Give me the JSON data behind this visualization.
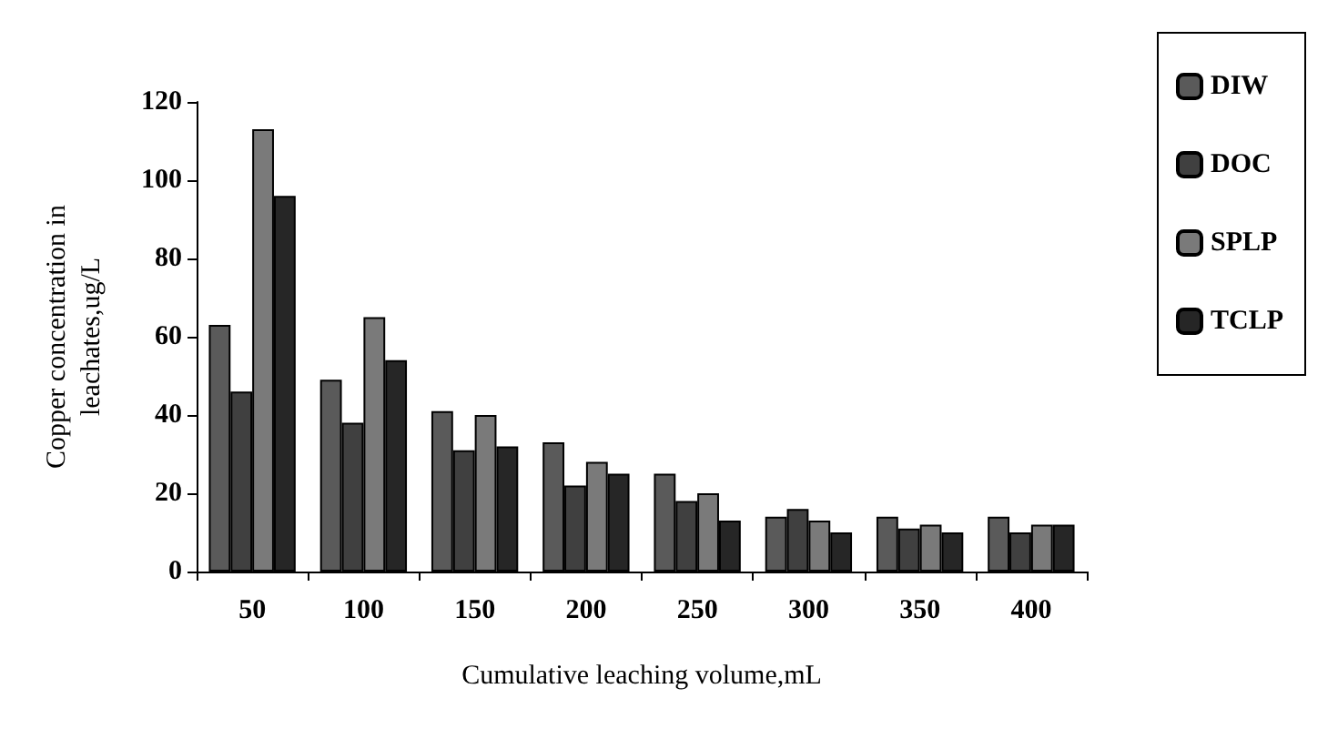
{
  "chart_data": {
    "type": "bar",
    "xlabel": "Cumulative leaching volume,mL",
    "ylabel": "Copper concentration in\nleachates,ug/L",
    "categories": [
      "50",
      "100",
      "150",
      "200",
      "250",
      "300",
      "350",
      "400"
    ],
    "series": [
      {
        "name": "DIW",
        "color": "#5a5a5a",
        "values": [
          63,
          49,
          41,
          33,
          25,
          14,
          14,
          14
        ]
      },
      {
        "name": "DOC",
        "color": "#404040",
        "values": [
          46,
          38,
          31,
          22,
          18,
          16,
          11,
          10
        ]
      },
      {
        "name": "SPLP",
        "color": "#7a7a7a",
        "values": [
          113,
          65,
          40,
          28,
          20,
          13,
          12,
          12
        ]
      },
      {
        "name": "TCLP",
        "color": "#262626",
        "values": [
          96,
          54,
          32,
          25,
          13,
          10,
          10,
          12
        ]
      }
    ],
    "ylim": [
      0,
      120
    ],
    "yticks": [
      0,
      20,
      40,
      60,
      80,
      100,
      120
    ],
    "grid": false,
    "legend": "top right"
  }
}
